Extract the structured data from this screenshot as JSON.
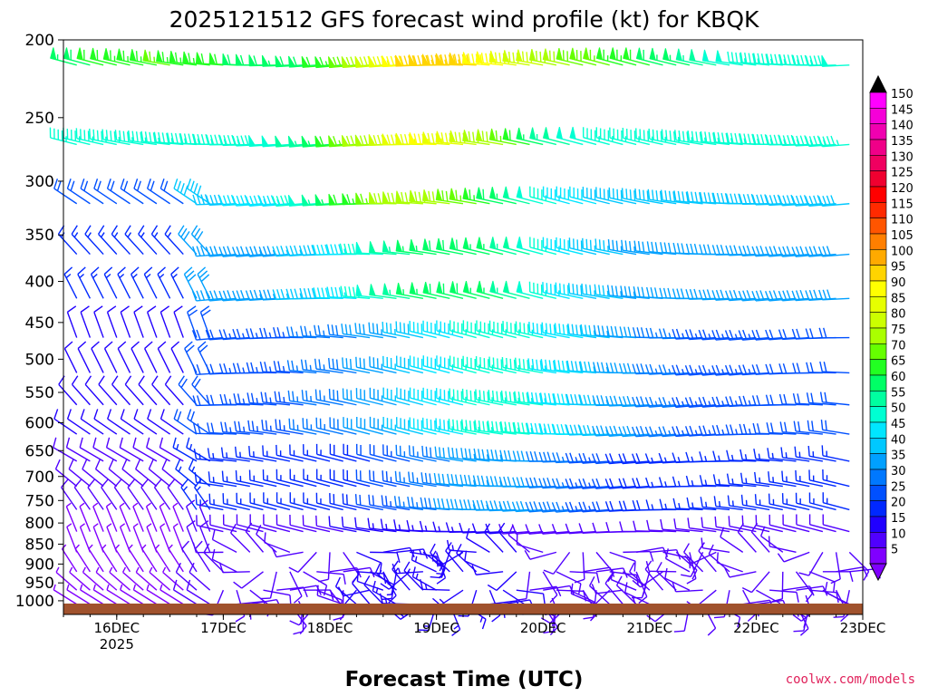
{
  "title": "2025121512 GFS forecast wind profile (kt) for KBQK",
  "xlabel": "Forecast Time (UTC)",
  "credit": "coolwx.com/models",
  "chart_data": {
    "type": "wind_profile",
    "title": "2025121512 GFS forecast wind profile (kt) for KBQK",
    "xlabel": "Forecast Time (UTC)",
    "ylabel": "",
    "x_range_hours": [
      0,
      180
    ],
    "x_ticks": [
      {
        "label": "16DEC",
        "hour": 12,
        "sublabel": "2025"
      },
      {
        "label": "17DEC",
        "hour": 36
      },
      {
        "label": "18DEC",
        "hour": 60
      },
      {
        "label": "19DEC",
        "hour": 84
      },
      {
        "label": "20DEC",
        "hour": 108
      },
      {
        "label": "21DEC",
        "hour": 132
      },
      {
        "label": "22DEC",
        "hour": 156
      },
      {
        "label": "23DEC",
        "hour": 180
      }
    ],
    "y_range_hpa": [
      1040,
      200
    ],
    "y_scale": "pressure",
    "y_ticks": [
      200,
      250,
      300,
      350,
      400,
      450,
      500,
      550,
      600,
      650,
      700,
      750,
      800,
      850,
      900,
      950,
      1000
    ],
    "colorbar": {
      "labels": [
        150,
        145,
        140,
        135,
        130,
        125,
        120,
        115,
        110,
        105,
        100,
        95,
        90,
        85,
        80,
        75,
        70,
        65,
        60,
        55,
        50,
        45,
        40,
        35,
        30,
        25,
        20,
        15,
        10,
        5
      ],
      "colors": [
        "#ff00ff",
        "#f500d8",
        "#f000b0",
        "#f00088",
        "#f00060",
        "#f00030",
        "#ff0000",
        "#ff2a00",
        "#ff5500",
        "#ff7f00",
        "#ffaa00",
        "#ffd400",
        "#ffff00",
        "#e6ff00",
        "#ccff00",
        "#aaff00",
        "#66ff00",
        "#22ff22",
        "#00ff66",
        "#00ffa0",
        "#00ffd2",
        "#00e6ff",
        "#00c8ff",
        "#00a0ff",
        "#0078ff",
        "#0050ff",
        "#0028ff",
        "#2000ff",
        "#5000ff",
        "#8000ff"
      ],
      "extends": "both"
    },
    "levels_hpa": [
      215,
      270,
      320,
      370,
      420,
      470,
      520,
      570,
      620,
      670,
      720,
      770,
      820,
      870,
      920,
      970,
      1010
    ],
    "surface_color": "#a0522d",
    "grid": false,
    "legend": "colorbar-right"
  }
}
